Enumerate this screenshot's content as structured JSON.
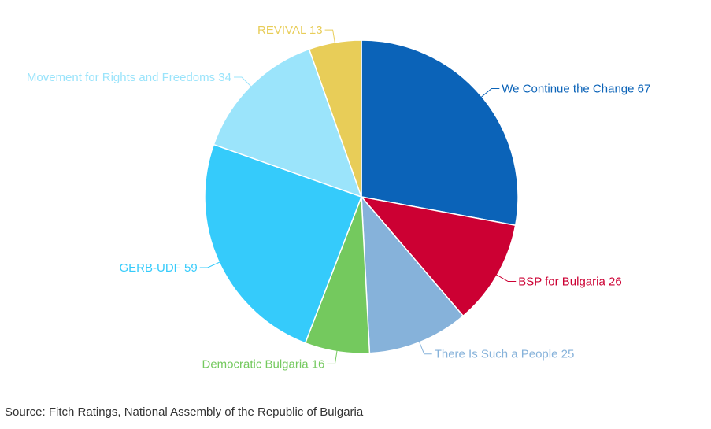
{
  "chart_data": {
    "type": "pie",
    "slices": [
      {
        "label": "We Continue the Change",
        "value": 67,
        "color": "#0b63b8"
      },
      {
        "label": "BSP for Bulgaria",
        "value": 26,
        "color": "#cc0033"
      },
      {
        "label": "There Is Such a People",
        "value": 25,
        "color": "#86b2da"
      },
      {
        "label": "Democratic Bulgaria",
        "value": 16,
        "color": "#74c95e"
      },
      {
        "label": "GERB-UDF",
        "value": 59,
        "color": "#35cbfb"
      },
      {
        "label": "Movement for Rights and Freedoms",
        "value": 34,
        "color": "#9be4fb"
      },
      {
        "label": "REVIVAL",
        "value": 13,
        "color": "#e8cd58"
      }
    ]
  },
  "source_text": "Source: Fitch Ratings, National Assembly of the Republic of Bulgaria"
}
